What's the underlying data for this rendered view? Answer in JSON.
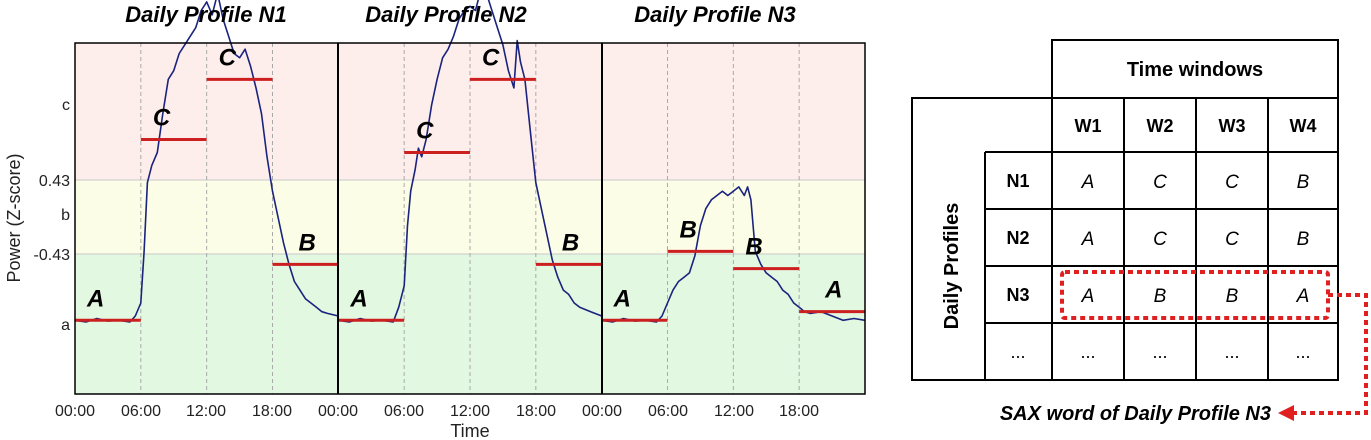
{
  "panels": [
    {
      "title": "Daily Profile N1",
      "symbols": [
        "A",
        "C",
        "C",
        "B"
      ],
      "window_means": [
        -1.2,
        0.9,
        1.6,
        -0.55
      ]
    },
    {
      "title": "Daily Profile N2",
      "symbols": [
        "A",
        "C",
        "C",
        "B"
      ],
      "window_means": [
        -1.2,
        0.75,
        1.6,
        -0.55
      ]
    },
    {
      "title": "Daily Profile N3",
      "symbols": [
        "A",
        "B",
        "B",
        "A"
      ],
      "window_means": [
        -1.2,
        -0.4,
        -0.6,
        -1.1
      ]
    }
  ],
  "chart_data": {
    "type": "line",
    "ylabel": "Power (Z-score)",
    "xlabel": "Time",
    "x_ticks": [
      "00:00",
      "06:00",
      "12:00",
      "18:00",
      "00:00",
      "06:00",
      "12:00",
      "18:00",
      "00:00",
      "06:00",
      "12:00",
      "18:00"
    ],
    "y_ticks": [
      "c",
      "0.43",
      "b",
      "-0.43",
      "a"
    ],
    "breakpoints": [
      -0.43,
      0.43
    ],
    "ylim": [
      -2.3,
      2.7
    ],
    "region_colors": {
      "a": "#e3f8e1",
      "b": "#fcfde6",
      "c": "#fdeeec"
    },
    "series": [
      {
        "x": [
          0,
          1,
          2,
          3,
          4,
          5,
          5.5,
          6,
          6.3,
          6.6,
          7,
          7.5,
          8,
          8.5,
          9,
          9.5,
          10,
          10.5,
          11,
          11.5,
          12,
          12.5,
          13,
          13.5,
          14,
          14.5,
          15,
          15.5,
          16,
          16.5,
          17,
          17.5,
          18,
          18.5,
          19,
          19.5,
          20,
          20.5,
          21,
          21.5,
          22,
          22.5,
          23,
          24
        ],
        "values": [
          -1.2,
          -1.22,
          -1.18,
          -1.21,
          -1.2,
          -1.22,
          -1.15,
          -1.0,
          -0.4,
          0.4,
          0.6,
          0.75,
          1.2,
          1.6,
          1.7,
          1.9,
          2.0,
          2.1,
          2.2,
          2.4,
          2.5,
          2.35,
          2.6,
          2.3,
          2.1,
          1.9,
          1.85,
          1.95,
          1.75,
          1.5,
          1.2,
          0.7,
          0.3,
          0.0,
          -0.3,
          -0.55,
          -0.75,
          -0.85,
          -0.95,
          -1.0,
          -1.05,
          -1.1,
          -1.12,
          -1.15
        ]
      },
      {
        "x": [
          0,
          1,
          2,
          3,
          4,
          5,
          5.5,
          6,
          6.3,
          6.6,
          7,
          7.3,
          7.6,
          8,
          8.5,
          9,
          9.5,
          10,
          10.5,
          11,
          11.5,
          12,
          12.5,
          13,
          13.5,
          14,
          14.5,
          15,
          15.5,
          16,
          16.3,
          16.6,
          17,
          17.5,
          18,
          18.5,
          19,
          19.5,
          20,
          20.5,
          21,
          21.5,
          22,
          23,
          24
        ],
        "values": [
          -1.2,
          -1.22,
          -1.18,
          -1.21,
          -1.2,
          -1.22,
          -1.05,
          -0.8,
          -0.1,
          0.3,
          0.55,
          0.8,
          0.7,
          0.9,
          1.3,
          1.6,
          1.85,
          1.95,
          2.1,
          2.3,
          2.4,
          2.45,
          2.4,
          2.65,
          2.6,
          2.4,
          2.2,
          2.0,
          1.7,
          1.5,
          2.05,
          1.8,
          1.6,
          1.0,
          0.4,
          0.1,
          -0.2,
          -0.5,
          -0.7,
          -0.85,
          -0.9,
          -1.0,
          -1.05,
          -1.1,
          -1.15
        ]
      },
      {
        "x": [
          0,
          1,
          2,
          3,
          4,
          5,
          5.5,
          6,
          6.5,
          7,
          7.5,
          8,
          8.5,
          9,
          9.5,
          10,
          10.5,
          11,
          11.5,
          12,
          12.5,
          13,
          13.3,
          13.6,
          14,
          14.5,
          15,
          15.5,
          16,
          16.5,
          17,
          17.5,
          18,
          18.5,
          19,
          20,
          21,
          22,
          23,
          24
        ],
        "values": [
          -1.2,
          -1.22,
          -1.18,
          -1.21,
          -1.2,
          -1.22,
          -1.15,
          -1.0,
          -0.85,
          -0.75,
          -0.7,
          -0.65,
          -0.45,
          -0.1,
          0.1,
          0.2,
          0.25,
          0.3,
          0.25,
          0.3,
          0.35,
          0.25,
          0.35,
          0.2,
          -0.4,
          -0.55,
          -0.65,
          -0.7,
          -0.75,
          -0.85,
          -0.9,
          -1.0,
          -1.05,
          -1.1,
          -1.12,
          -1.1,
          -1.15,
          -1.2,
          -1.18,
          -1.2
        ]
      }
    ]
  },
  "table": {
    "header": "Time windows",
    "row_group_label": "Daily Profiles",
    "columns": [
      "W1",
      "W2",
      "W3",
      "W4"
    ],
    "rows": [
      {
        "label": "N1",
        "cells": [
          "A",
          "C",
          "C",
          "B"
        ]
      },
      {
        "label": "N2",
        "cells": [
          "A",
          "C",
          "C",
          "B"
        ]
      },
      {
        "label": "N3",
        "cells": [
          "A",
          "B",
          "B",
          "A"
        ]
      },
      {
        "label": "...",
        "cells": [
          "...",
          "...",
          "...",
          "..."
        ]
      }
    ],
    "highlight_row": "N3",
    "highlight_color": "#e02020"
  },
  "sax_caption": "SAX word of Daily Profile N3"
}
